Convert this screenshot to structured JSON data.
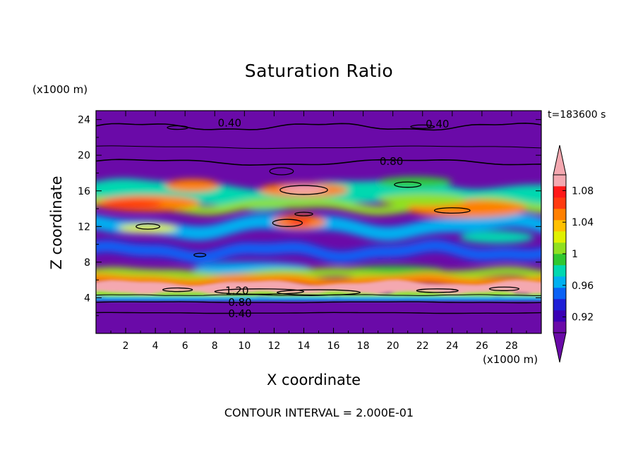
{
  "chart_data": {
    "type": "heatmap",
    "title": "Saturation Ratio",
    "xlabel": "X coordinate",
    "ylabel": "Z coordinate",
    "x_unit": "(x1000 m)",
    "y_unit": "(x1000 m)",
    "time_label": "t=183600 s",
    "footer": "CONTOUR INTERVAL = 2.000E-01",
    "xlim": [
      0,
      30
    ],
    "ylim": [
      0,
      25
    ],
    "x_ticks": [
      "2",
      "4",
      "6",
      "8",
      "10",
      "12",
      "14",
      "16",
      "18",
      "20",
      "22",
      "24",
      "26",
      "28"
    ],
    "y_ticks": [
      "4",
      "8",
      "12",
      "16",
      "20",
      "24"
    ],
    "contour_labels": [
      {
        "text": "0.40",
        "x": 9.0,
        "z": 23.6
      },
      {
        "text": "0.40",
        "x": 23.0,
        "z": 23.5
      },
      {
        "text": "0.80",
        "x": 19.9,
        "z": 19.3
      },
      {
        "text": "1.20",
        "x": 9.5,
        "z": 4.8
      },
      {
        "text": "0.80",
        "x": 9.7,
        "z": 3.5
      },
      {
        "text": "0.40",
        "x": 9.7,
        "z": 2.2
      }
    ],
    "colorbar": {
      "levels": [
        "0.92",
        "0.96",
        "1",
        "1.04",
        "1.08"
      ],
      "colors": [
        "#6a0aa8",
        "#3a00b4",
        "#1f1fd6",
        "#0a62f5",
        "#00b0f0",
        "#00d8b0",
        "#30c830",
        "#90e020",
        "#e0f000",
        "#ffc000",
        "#ff8000",
        "#ff3a10",
        "#ff1818",
        "#f4a8b0"
      ],
      "under_color": "#6a0aa8",
      "over_color": "#f4a8b0",
      "range": [
        0.9,
        1.1
      ]
    }
  }
}
